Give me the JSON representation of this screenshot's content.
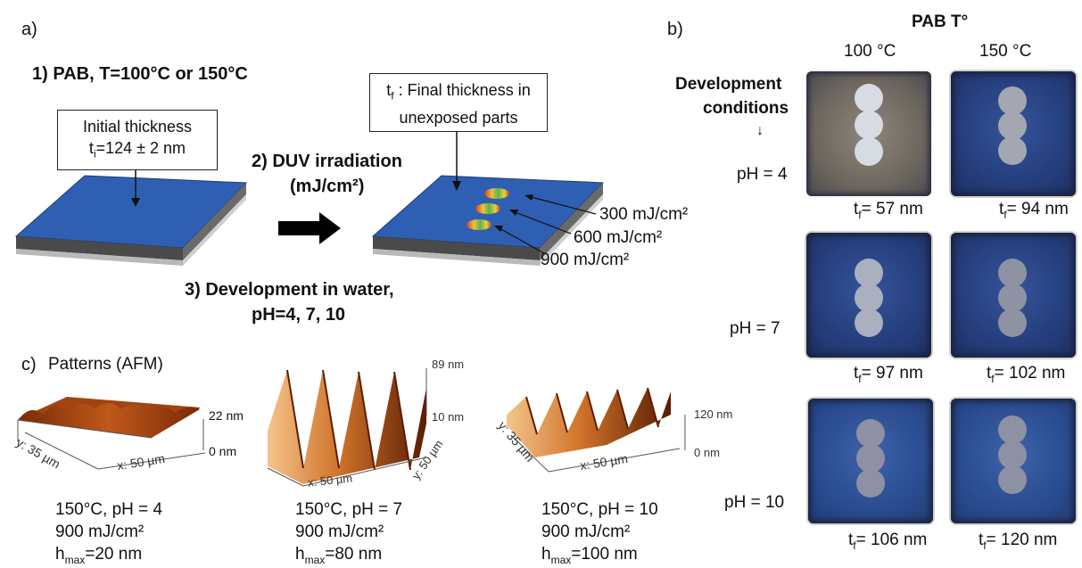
{
  "panel_a": {
    "label": "a)",
    "step1": "1) PAB, T=100°C or 150°C",
    "initial_box": {
      "line1": "Initial thickness",
      "line2": "t",
      "line2_sub": "i",
      "line2_rest": "=124 ± 2 nm"
    },
    "step2_line1": "2) DUV irradiation",
    "step2_line2": "(mJ/cm²)",
    "final_box": {
      "t": "t",
      "sub": "f",
      "rest": " : Final thickness in",
      "line2": "unexposed parts"
    },
    "doses": [
      "300 mJ/cm²",
      "600 mJ/cm²",
      "900 mJ/cm²"
    ],
    "step3_line1": "3) Development in water,",
    "step3_line2": "pH=4, 7, 10"
  },
  "panel_b": {
    "label": "b)",
    "title": "PAB T°",
    "col_headers": [
      "100 °C",
      "150 °C"
    ],
    "dev_line1": "Development",
    "dev_line2": "conditions",
    "arrow": "↓",
    "rows": [
      {
        "ph": "pH = 4",
        "tf": [
          "= 57 nm",
          "= 94 nm"
        ]
      },
      {
        "ph": "pH = 7",
        "tf": [
          "= 97 nm",
          "= 102 nm"
        ]
      },
      {
        "ph": "pH = 10",
        "tf": [
          "= 106 nm",
          "= 120 nm"
        ]
      }
    ],
    "tf_t": "t",
    "tf_sub": "f"
  },
  "panel_c": {
    "label": "c)",
    "title": "Patterns (AFM)",
    "plots": [
      {
        "zmax": "22 nm",
        "zmin": "0 nm",
        "x": "x: 50 µm",
        "y": "y: 35 µm",
        "cond": "150°C, pH = 4",
        "dose": "900 mJ/cm²",
        "h": "h",
        "h_sub": "max",
        "h_rest": "=20 nm"
      },
      {
        "zmax": "89 nm",
        "zmin": "10 nm",
        "x": "x: 50 µm",
        "y": "y: 50 µm",
        "cond": "150°C, pH = 7",
        "dose": "900 mJ/cm²",
        "h": "h",
        "h_sub": "max",
        "h_rest": "=80 nm"
      },
      {
        "zmax": "120 nm",
        "zmin": "0 nm",
        "x": "x: 50 µm",
        "y": "y: 35 µm",
        "cond": "150°C, pH = 10",
        "dose": "900 mJ/cm²",
        "h": "h",
        "h_sub": "max",
        "h_rest": "=100 nm"
      }
    ]
  },
  "colors": {
    "substrate_blue": "#2f5fb3",
    "substrate_dark": "#3a3a3a",
    "afm_dark": "#7a2a06",
    "afm_light": "#f4c48a"
  }
}
